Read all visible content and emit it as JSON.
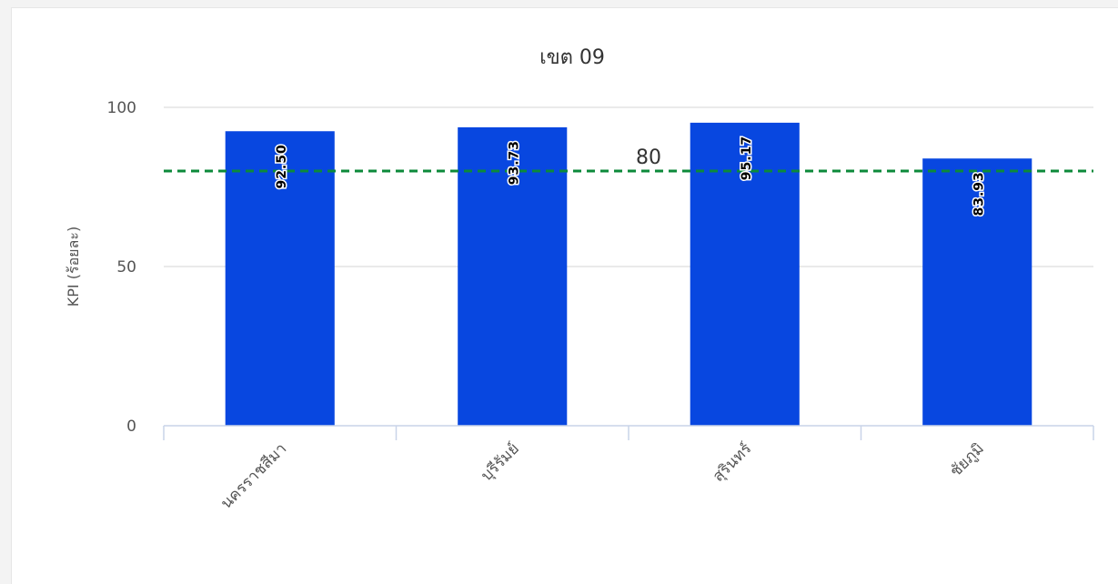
{
  "chart_data": {
    "type": "bar",
    "title": "เขต 09",
    "ylabel": "KPI (ร้อยละ)",
    "xlabel": "",
    "categories": [
      "นครราชสีมา",
      "บุรีรัมย์",
      "สุรินทร์",
      "ชัยภูมิ"
    ],
    "values": [
      92.5,
      93.73,
      95.17,
      83.93
    ],
    "value_labels": [
      "92.50",
      "93.73",
      "95.17",
      "83.93"
    ],
    "ylim": [
      0,
      100
    ],
    "yticks": [
      0,
      50,
      100
    ],
    "grid": true,
    "bar_color": "#0847e0",
    "reference_line": {
      "value": 80,
      "label": "80",
      "color": "#0c8a3a",
      "style": "dashed"
    }
  }
}
